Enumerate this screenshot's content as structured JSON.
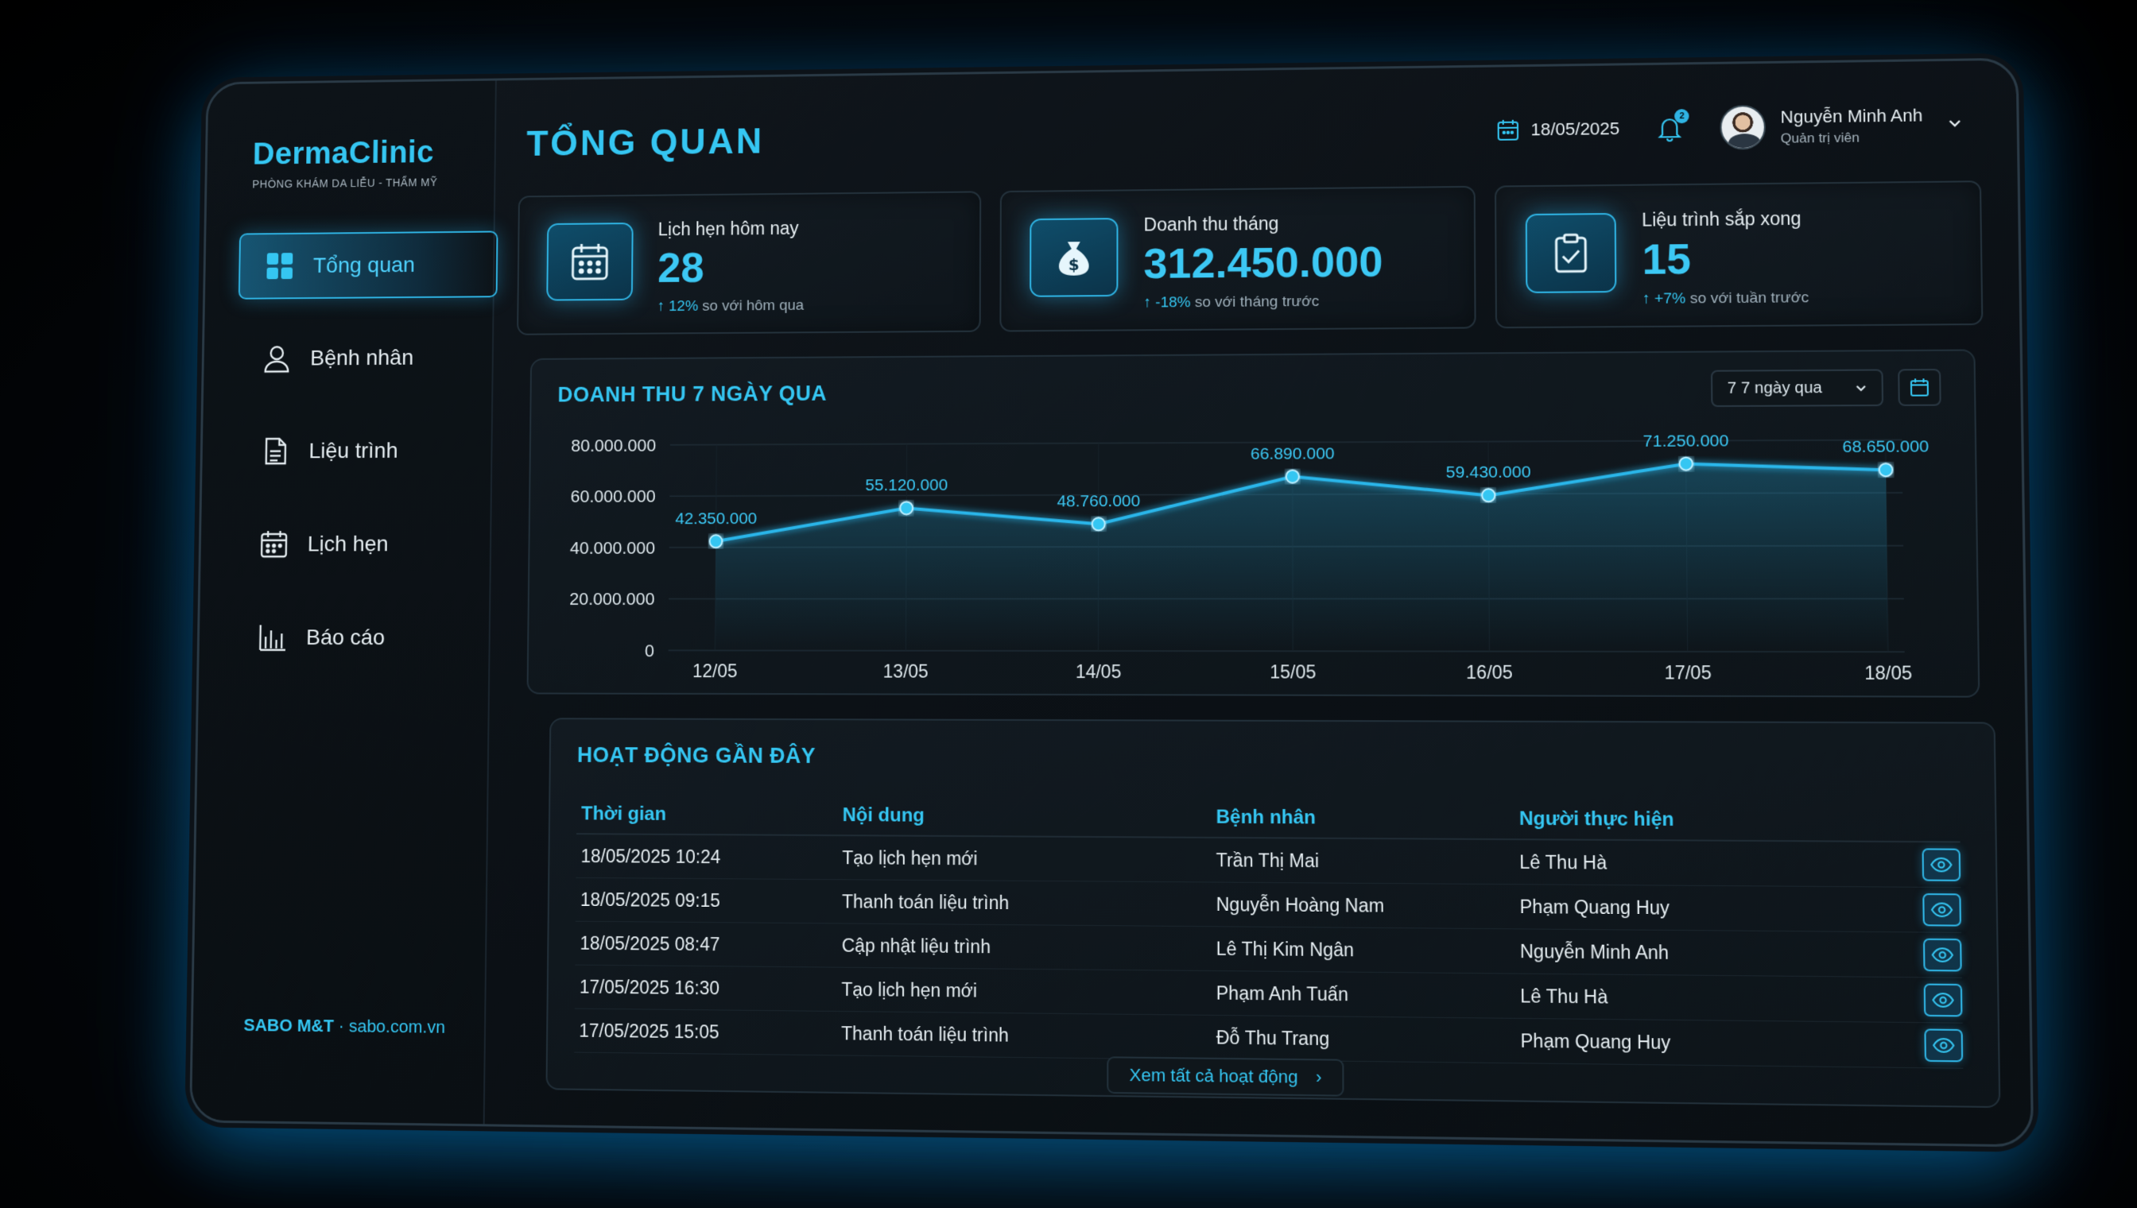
{
  "brand": {
    "name": "DermaClinic",
    "tagline": "PHÒNG KHÁM DA LIỄU - THẨM MỸ"
  },
  "sidebar": {
    "items": [
      {
        "label": "Tổng quan",
        "icon": "grid-icon",
        "active": true
      },
      {
        "label": "Bệnh nhân",
        "icon": "user-icon",
        "active": false
      },
      {
        "label": "Liệu trình",
        "icon": "document-icon",
        "active": false
      },
      {
        "label": "Lịch hẹn",
        "icon": "calendar-icon",
        "active": false
      },
      {
        "label": "Báo cáo",
        "icon": "bar-chart-icon",
        "active": false
      }
    ],
    "footer_brand": "SABO M&T",
    "footer_sep": " · ",
    "footer_site": "sabo.com.vn"
  },
  "header": {
    "title": "TỔNG QUAN",
    "date": "18/05/2025",
    "notification_count": "2",
    "user_name": "Nguyễn Minh Anh",
    "user_role": "Quản trị viên"
  },
  "kpis": [
    {
      "label": "Lịch hẹn hôm nay",
      "value": "28",
      "delta_pct": "12%",
      "delta_text": " so với hôm qua",
      "icon": "calendar-icon"
    },
    {
      "label": "Doanh thu tháng",
      "value": "312.450.000",
      "delta_pct": "-18%",
      "delta_text": " so với tháng trước",
      "icon": "money-bag-icon"
    },
    {
      "label": "Liệu trình sắp xong",
      "value": "15",
      "delta_pct": "+7%",
      "delta_text": " so với tuần trước",
      "icon": "clipboard-check-icon"
    }
  ],
  "revenue_panel": {
    "title": "DOANH THU 7 NGÀY QUA",
    "range_selected": "7 7 ngày qua"
  },
  "chart_data": {
    "type": "line",
    "title": "DOANH THU 7 NGÀY QUA",
    "categories": [
      "12/05",
      "13/05",
      "14/05",
      "15/05",
      "16/05",
      "17/05",
      "18/05"
    ],
    "values": [
      42350000,
      55120000,
      48760000,
      66890000,
      59430000,
      71250000,
      68650000
    ],
    "value_labels": [
      "42.350.000",
      "55.120.000",
      "48.760.000",
      "66.890.000",
      "59.430.000",
      "71.250.000",
      "68.650.000"
    ],
    "y_ticks": [
      0,
      20000000,
      40000000,
      60000000,
      80000000
    ],
    "y_tick_labels": [
      "0",
      "20.000.000",
      "40.000.000",
      "60.000.000",
      "80.000.000"
    ],
    "ylim": [
      0,
      80000000
    ],
    "grid": true,
    "line_color": "#29b6ea"
  },
  "activity": {
    "title": "HOẠT ĐỘNG GẦN ĐÂY",
    "columns": [
      "Thời gian",
      "Nội dung",
      "Bệnh nhân",
      "Người thực hiện"
    ],
    "rows": [
      {
        "time": "18/05/2025 10:24",
        "content": "Tạo lịch hẹn mới",
        "patient": "Trần Thị Mai",
        "actor": "Lê Thu Hà"
      },
      {
        "time": "18/05/2025 09:15",
        "content": "Thanh toán liệu trình",
        "patient": "Nguyễn Hoàng Nam",
        "actor": "Phạm Quang Huy"
      },
      {
        "time": "18/05/2025 08:47",
        "content": "Cập nhật liệu trình",
        "patient": "Lê Thị Kim Ngân",
        "actor": "Nguyễn Minh Anh"
      },
      {
        "time": "17/05/2025 16:30",
        "content": "Tạo lịch hẹn mới",
        "patient": "Phạm Anh Tuấn",
        "actor": "Lê Thu Hà"
      },
      {
        "time": "17/05/2025 15:05",
        "content": "Thanh toán liệu trình",
        "patient": "Đỗ Thu Trang",
        "actor": "Phạm Quang Huy"
      }
    ],
    "view_all": "Xem tất cả hoạt động"
  },
  "colors": {
    "accent": "#35c6f2",
    "glow": "#2fb4e4",
    "background": "#0b1015"
  }
}
